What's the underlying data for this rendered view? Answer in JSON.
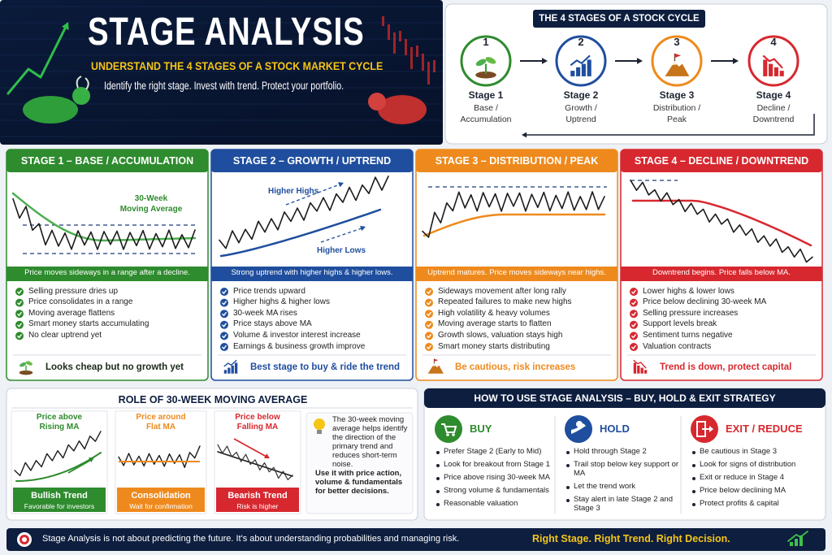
{
  "header": {
    "title": "STAGE ANALYSIS",
    "subtitle": "UNDERSTAND THE 4 STAGES OF A STOCK MARKET CYCLE",
    "tagline": "Identify the right stage. Invest with trend. Protect your portfolio."
  },
  "cycle": {
    "title": "THE 4 STAGES OF A STOCK CYCLE",
    "stages": [
      {
        "number": "1",
        "name": "Stage 1",
        "label": [
          "Base /",
          "Accumulation"
        ]
      },
      {
        "number": "2",
        "name": "Stage 2",
        "label": [
          "Growth /",
          "Uptrend"
        ]
      },
      {
        "number": "3",
        "name": "Stage 3",
        "label": [
          "Distribution /",
          "Peak"
        ]
      },
      {
        "number": "4",
        "name": "Stage 4",
        "label": [
          "Decline /",
          "Downtrend"
        ]
      }
    ]
  },
  "stages": [
    {
      "title": "STAGE 1 – BASE / ACCUMULATION",
      "annotations": [
        "30-Week",
        "Moving Average"
      ],
      "caption": "Price moves sideways in a range after a decline.",
      "points": [
        "Selling pressure dries up",
        "Price consolidates in a range",
        "Moving average flattens",
        "Smart money starts accumulating",
        "No clear uptrend yet"
      ],
      "footer": "Looks cheap but no growth yet"
    },
    {
      "title": "STAGE 2 – GROWTH / UPTREND",
      "annotations": [
        "Higher Highs",
        "Higher Lows"
      ],
      "caption": "Strong uptrend with higher highs & higher lows.",
      "points": [
        "Price trends upward",
        "Higher highs & higher lows",
        "30-week MA rises",
        "Price stays above MA",
        "Volume & investor interest increase",
        "Earnings & business growth improve"
      ],
      "footer": "Best stage to buy & ride the trend"
    },
    {
      "title": "STAGE 3 – DISTRIBUTION / PEAK",
      "caption": "Uptrend matures. Price moves sideways near highs.",
      "points": [
        "Sideways movement after long rally",
        "Repeated failures to make new highs",
        "High volatility & heavy volumes",
        "Moving average starts to flatten",
        "Growth slows, valuation stays high",
        "Smart money starts distributing"
      ],
      "footer": "Be cautious, risk increases"
    },
    {
      "title": "STAGE 4 – DECLINE / DOWNTREND",
      "caption": "Downtrend begins. Price falls below MA.",
      "points": [
        "Lower highs & lower lows",
        "Price below declining 30-week MA",
        "Selling pressure increases",
        "Support levels break",
        "Sentiment turns negative",
        "Valuation contracts"
      ],
      "footer": "Trend is down, protect capital"
    }
  ],
  "ma_role": {
    "title": "ROLE OF 30-WEEK MOVING AVERAGE",
    "panels": [
      {
        "label": [
          "Price above",
          "Rising MA"
        ],
        "badge": "Bullish Trend",
        "note": "Favorable for investors"
      },
      {
        "label": [
          "Price around",
          "Flat MA"
        ],
        "badge": "Consolidation",
        "note": "Wait for confirmation"
      },
      {
        "label": [
          "Price below",
          "Falling MA"
        ],
        "badge": "Bearish Trend",
        "note": "Risk is higher"
      }
    ],
    "info": "The 30-week moving average helps identify the direction of the primary trend and reduces short-term noise.",
    "tip": "Use it with price action, volume & fundamentals for better decisions."
  },
  "strategy": {
    "title": "HOW TO USE STAGE ANALYSIS – BUY, HOLD & EXIT STRATEGY",
    "columns": [
      {
        "title": "BUY",
        "points": [
          "Prefer Stage 2 (Early to Mid)",
          "Look for breakout from Stage 1",
          "Price above rising 30-week MA",
          "Strong volume & fundamentals",
          "Reasonable valuation"
        ]
      },
      {
        "title": "HOLD",
        "points": [
          "Hold through Stage 2",
          "Trail stop below key support or MA",
          "Let the trend work",
          "Stay alert in late Stage 2 and Stage 3"
        ]
      },
      {
        "title": "EXIT / REDUCE",
        "points": [
          "Be cautious in Stage 3",
          "Look for signs of distribution",
          "Exit or reduce in Stage 4",
          "Price below declining MA",
          "Protect profits & capital"
        ]
      }
    ]
  },
  "footer": {
    "message": "Stage Analysis is not about predicting the future. It's about understanding probabilities and managing risk.",
    "slogan": "Right Stage. Right Trend. Right Decision."
  }
}
